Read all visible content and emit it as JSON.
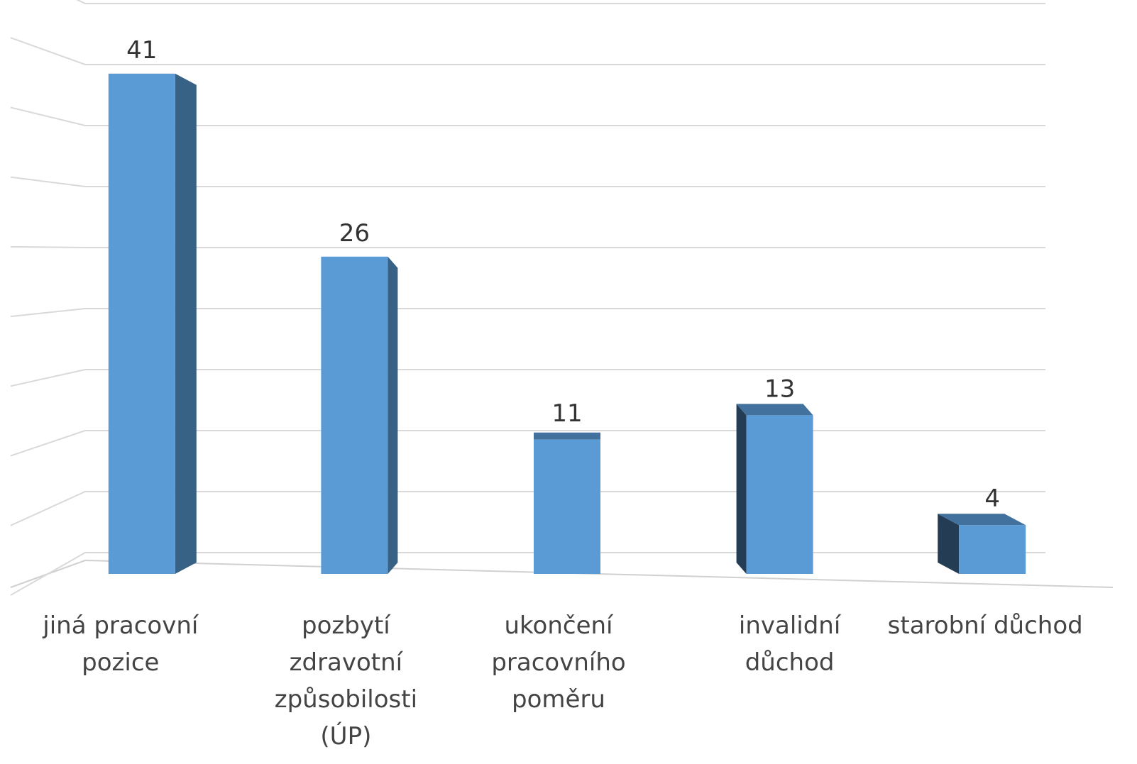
{
  "chart_data": {
    "type": "bar3d",
    "categories": [
      "jiná pracovní pozice",
      "pozbytí zdravotní způsobilosti (ÚP)",
      "ukončení pracovního poměru",
      "invalidní důchod",
      "starobní důchod"
    ],
    "values": [
      41,
      26,
      11,
      13,
      4
    ],
    "color": "#5b9bd5",
    "ylim": [
      0,
      45
    ],
    "yticks": [
      0,
      5,
      10,
      15,
      20,
      25,
      30,
      35,
      40,
      45
    ],
    "grid": true
  }
}
